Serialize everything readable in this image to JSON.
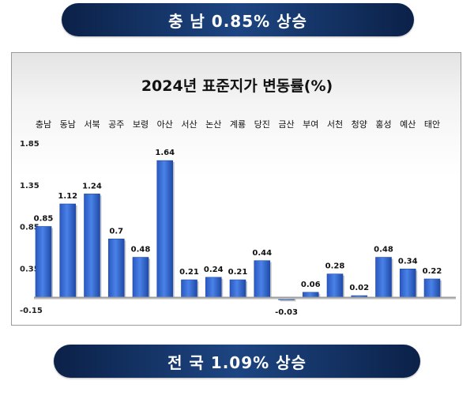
{
  "header": {
    "banner_text": "충 남 0.85% 상승"
  },
  "footer": {
    "banner_text": "전 국 1.09% 상승"
  },
  "chart_data": {
    "type": "bar",
    "title": "2024년 표준지가 변동률(%)",
    "categories": [
      "충남",
      "동남",
      "서북",
      "공주",
      "보령",
      "아산",
      "서산",
      "논산",
      "계룡",
      "당진",
      "금산",
      "부여",
      "서천",
      "청양",
      "홍성",
      "예산",
      "태안"
    ],
    "values": [
      0.85,
      1.12,
      1.24,
      0.7,
      0.48,
      1.64,
      0.21,
      0.24,
      0.21,
      0.44,
      -0.03,
      0.06,
      0.28,
      0.02,
      0.48,
      0.34,
      0.22
    ],
    "value_labels": [
      "0.85",
      "1.12",
      "1.24",
      "0.7",
      "0.48",
      "1.64",
      "0.21",
      "0.24",
      "0.21",
      "0.44",
      "-0.03",
      "0.06",
      "0.28",
      "0.02",
      "0.48",
      "0.34",
      "0.22"
    ],
    "y_ticks": [
      1.85,
      1.35,
      0.85,
      0.35,
      -0.15
    ],
    "y_tick_labels": [
      "1.85",
      "1.35",
      "0.85",
      "0.35",
      "-0.15"
    ],
    "ylim": [
      -0.15,
      1.85
    ],
    "xlabel": "",
    "ylabel": "",
    "grid": false,
    "bar_color": "#3a6fd6",
    "bar_color_dark": "#1f4aa8"
  }
}
